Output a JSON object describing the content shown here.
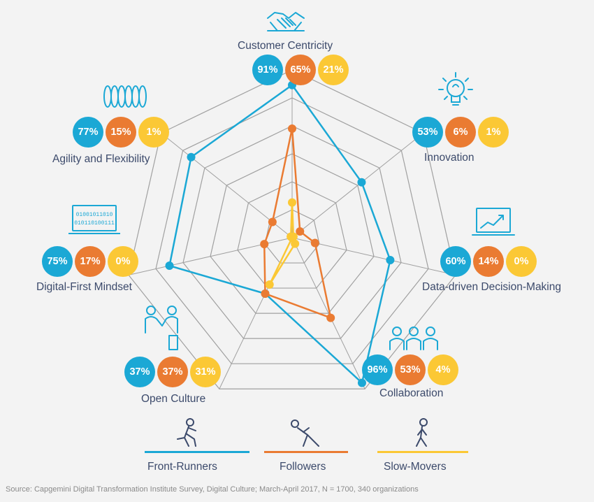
{
  "colors": {
    "front_runners": "#1ba8d5",
    "followers": "#ea7b32",
    "slow_movers": "#fbc835",
    "grid": "#a0a0a0",
    "label": "#3c4a6b"
  },
  "chart_data": {
    "type": "radar",
    "title": "",
    "axes": [
      "Customer Centricity",
      "Innovation",
      "Data-driven Decision-Making",
      "Collaboration",
      "Open Culture",
      "Digital-First Mindset",
      "Agility and Flexibility"
    ],
    "icons": [
      "handshake-icon",
      "lightbulb-icon",
      "laptop-chart-icon",
      "people-group-icon",
      "two-people-icon",
      "binary-laptop-icon",
      "spring-coil-icon"
    ],
    "range": [
      0,
      100
    ],
    "grid_rings": 6,
    "series": [
      {
        "name": "Front-Runners",
        "values": [
          91,
          53,
          60,
          96,
          37,
          75,
          77
        ],
        "labels": [
          "91%",
          "53%",
          "60%",
          "96%",
          "37%",
          "75%",
          "77%"
        ]
      },
      {
        "name": "Followers",
        "values": [
          65,
          6,
          14,
          53,
          37,
          17,
          15
        ],
        "labels": [
          "65%",
          "6%",
          "14%",
          "53%",
          "37%",
          "17%",
          "15%"
        ]
      },
      {
        "name": "Slow-Movers",
        "values": [
          21,
          1,
          0,
          4,
          31,
          0,
          1
        ],
        "labels": [
          "21%",
          "1%",
          "0%",
          "4%",
          "31%",
          "0%",
          "1%"
        ]
      }
    ]
  },
  "legend": [
    {
      "name": "Front-Runners",
      "icon": "running-person-icon"
    },
    {
      "name": "Followers",
      "icon": "pushing-person-icon"
    },
    {
      "name": "Slow-Movers",
      "icon": "walking-person-icon"
    }
  ],
  "source": "Source: Capgemini Digital Transformation Institute Survey, Digital Culture; March-April 2017, N = 1700, 340 organizations"
}
